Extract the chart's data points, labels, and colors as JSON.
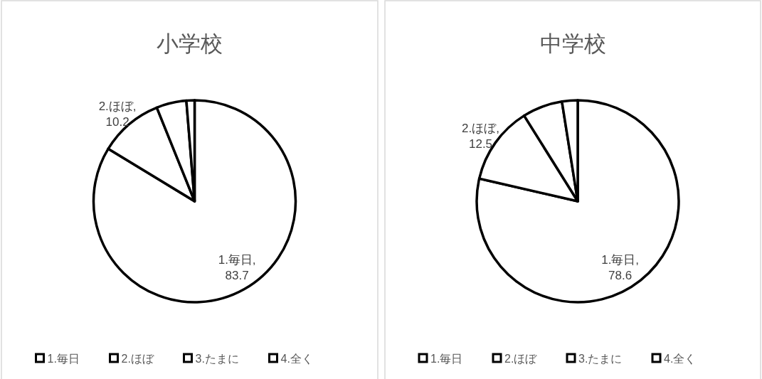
{
  "chart_data": [
    {
      "type": "pie",
      "title": "小学校",
      "categories": [
        "1.毎日",
        "2.ほぼ",
        "3.たまに",
        "4.全く"
      ],
      "values": [
        83.7,
        10.2,
        4.8,
        1.3
      ],
      "value_labels": [
        "1.毎日, 83.7",
        "2.ほぼ, 10.2",
        null,
        null
      ],
      "colors": [
        "#ffffff",
        "#ffffff",
        "#ffffff",
        "#ffffff"
      ],
      "legend": "bottom"
    },
    {
      "type": "pie",
      "title": "中学校",
      "categories": [
        "1.毎日",
        "2.ほぼ",
        "3.たまに",
        "4.全く"
      ],
      "values": [
        78.6,
        12.5,
        6.4,
        2.5
      ],
      "value_labels": [
        "1.毎日, 78.6",
        "2.ほぼ, 12.5",
        null,
        null
      ],
      "colors": [
        "#ffffff",
        "#ffffff",
        "#ffffff",
        "#ffffff"
      ],
      "legend": "bottom"
    }
  ]
}
